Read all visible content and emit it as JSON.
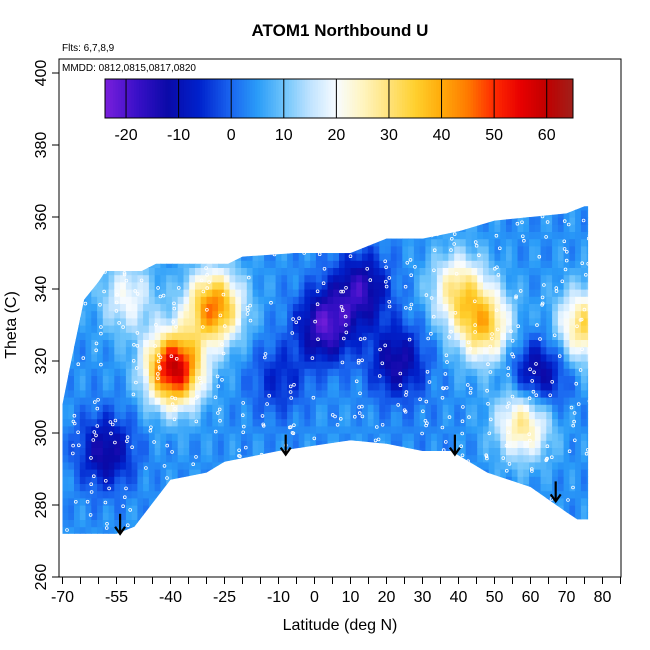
{
  "chart_data": {
    "type": "heatmap",
    "title": "ATOM1 Northbound U",
    "flights_label": "Flts: 6,7,8,9",
    "dates_label": "MMDD: 0812,0815,0817,0820",
    "xlabel": "Latitude (deg N)",
    "ylabel": "Theta (C)",
    "xlim": [
      -70,
      85
    ],
    "ylim": [
      260,
      402
    ],
    "x_tick_labels": [
      "-70",
      "-55",
      "-40",
      "-25",
      "-10",
      "0",
      "10",
      "20",
      "30",
      "40",
      "50",
      "60",
      "70",
      "80"
    ],
    "x_tick_values": [
      -70,
      -55,
      -40,
      -25,
      -10,
      0,
      10,
      20,
      30,
      40,
      50,
      60,
      70,
      80
    ],
    "x_minor_ticks": [
      -65,
      -60,
      -50,
      -45,
      -35,
      -30,
      -20,
      -15,
      -5,
      5,
      15,
      25,
      35,
      45,
      55,
      65,
      75,
      85
    ],
    "y_tick_labels": [
      "260",
      "280",
      "300",
      "320",
      "340",
      "360",
      "380",
      "400"
    ],
    "y_tick_values": [
      260,
      280,
      300,
      320,
      340,
      360,
      380,
      400
    ],
    "colorbar": {
      "min": -24,
      "max": 65,
      "tick_labels": [
        "-20",
        "-10",
        "0",
        "10",
        "20",
        "30",
        "40",
        "50",
        "60"
      ],
      "tick_values": [
        -20,
        -10,
        0,
        10,
        20,
        30,
        40,
        50,
        60
      ],
      "divider_values": [
        -20,
        -10,
        0,
        10,
        20,
        30,
        40,
        50,
        60
      ],
      "color_stops": [
        [
          -24,
          "#7a1fdc"
        ],
        [
          -18,
          "#3a10c8"
        ],
        [
          -12,
          "#0a0aa8"
        ],
        [
          -6,
          "#0022cc"
        ],
        [
          0,
          "#1a66f0"
        ],
        [
          5,
          "#2a9cf8"
        ],
        [
          10,
          "#6ec4fb"
        ],
        [
          15,
          "#bfe3ff"
        ],
        [
          20,
          "#f8fcff"
        ],
        [
          25,
          "#fff5c0"
        ],
        [
          30,
          "#ffe27a"
        ],
        [
          35,
          "#ffd02e"
        ],
        [
          40,
          "#ffaa0a"
        ],
        [
          45,
          "#ff7a00"
        ],
        [
          50,
          "#ff2a00"
        ],
        [
          55,
          "#e80000"
        ],
        [
          60,
          "#c00000"
        ],
        [
          65,
          "#a0201a"
        ]
      ]
    },
    "field_u_range": [
      -24,
      65
    ],
    "field_bottom_boundary_theta": [
      [
        -70,
        272
      ],
      [
        -55,
        272
      ],
      [
        -50,
        274
      ],
      [
        -40,
        287
      ],
      [
        -30,
        289
      ],
      [
        -25,
        292
      ],
      [
        -10,
        295
      ],
      [
        10,
        298
      ],
      [
        20,
        297
      ],
      [
        30,
        295
      ],
      [
        38,
        295
      ],
      [
        48,
        289
      ],
      [
        60,
        285
      ],
      [
        70,
        278
      ],
      [
        73,
        276
      ],
      [
        76,
        276
      ]
    ],
    "field_top_boundary_theta": [
      [
        -70,
        308
      ],
      [
        -68,
        318
      ],
      [
        -64,
        337
      ],
      [
        -60,
        342
      ],
      [
        -58,
        345
      ],
      [
        -48,
        345
      ],
      [
        -44,
        347
      ],
      [
        -24,
        347
      ],
      [
        -20,
        349
      ],
      [
        -5,
        350
      ],
      [
        10,
        350
      ],
      [
        20,
        354
      ],
      [
        30,
        354
      ],
      [
        40,
        356
      ],
      [
        50,
        359
      ],
      [
        60,
        360
      ],
      [
        70,
        361
      ],
      [
        75,
        363
      ],
      [
        76,
        363
      ]
    ],
    "field_hotspots": [
      {
        "lat": -28,
        "theta": 335,
        "u": 45
      },
      {
        "lat": -39,
        "theta": 318,
        "u": 60
      },
      {
        "lat": 47,
        "theta": 330,
        "u": 35
      },
      {
        "lat": 40,
        "theta": 340,
        "u": 28
      },
      {
        "lat": 58,
        "theta": 303,
        "u": 30
      },
      {
        "lat": 75,
        "theta": 330,
        "u": 32
      },
      {
        "lat": -52,
        "theta": 338,
        "u": 20
      },
      {
        "lat": 3,
        "theta": 330,
        "u": -20
      },
      {
        "lat": 13,
        "theta": 340,
        "u": -16
      },
      {
        "lat": 23,
        "theta": 320,
        "u": -14
      },
      {
        "lat": -58,
        "theta": 295,
        "u": -14
      },
      {
        "lat": 62,
        "theta": 316,
        "u": -15
      },
      {
        "lat": -10,
        "theta": 315,
        "u": -6
      },
      {
        "lat": 30,
        "theta": 300,
        "u": 3
      }
    ],
    "field_background_u": 4,
    "arrow_latitudes": [
      -54,
      -8,
      39,
      67
    ],
    "arrow_thetas": [
      277,
      299,
      299,
      286
    ]
  }
}
